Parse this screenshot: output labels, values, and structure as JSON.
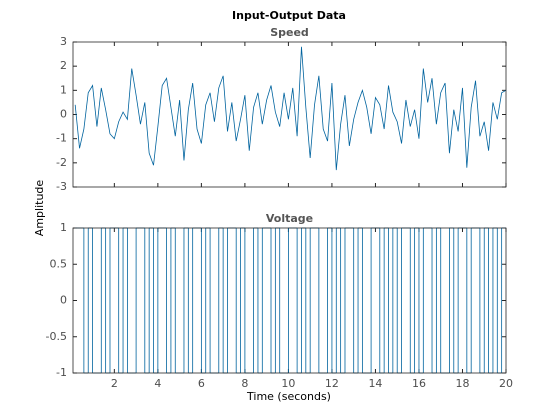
{
  "figure": {
    "title": "Input-Output Data",
    "xlabel": "Time (seconds)",
    "ylabel": "Amplitude"
  },
  "chart_data": [
    {
      "type": "line",
      "title": "Speed",
      "color": "#00639e",
      "xlim": [
        0.1,
        20
      ],
      "ylim": [
        -3,
        3
      ],
      "xticks": [
        2,
        4,
        6,
        8,
        10,
        12,
        14,
        16,
        18,
        20
      ],
      "yticks": [
        -3,
        -2,
        -1,
        0,
        1,
        2,
        3
      ],
      "x": [
        0.2,
        0.4,
        0.6,
        0.8,
        1.0,
        1.2,
        1.4,
        1.6,
        1.8,
        2.0,
        2.2,
        2.4,
        2.6,
        2.8,
        3.0,
        3.2,
        3.4,
        3.6,
        3.8,
        4.0,
        4.2,
        4.4,
        4.6,
        4.8,
        5.0,
        5.2,
        5.4,
        5.6,
        5.8,
        6.0,
        6.2,
        6.4,
        6.6,
        6.8,
        7.0,
        7.2,
        7.4,
        7.6,
        7.8,
        8.0,
        8.2,
        8.4,
        8.6,
        8.8,
        9.0,
        9.2,
        9.4,
        9.6,
        9.8,
        10.0,
        10.2,
        10.4,
        10.6,
        10.8,
        11.0,
        11.2,
        11.4,
        11.6,
        11.8,
        12.0,
        12.2,
        12.4,
        12.6,
        12.8,
        13.0,
        13.2,
        13.4,
        13.6,
        13.8,
        14.0,
        14.2,
        14.4,
        14.6,
        14.8,
        15.0,
        15.2,
        15.4,
        15.6,
        15.8,
        16.0,
        16.2,
        16.4,
        16.6,
        16.8,
        17.0,
        17.2,
        17.4,
        17.6,
        17.8,
        18.0,
        18.2,
        18.4,
        18.6,
        18.8,
        19.0,
        19.2,
        19.4,
        19.6,
        19.8,
        20.0
      ],
      "values": [
        0.4,
        -1.4,
        -0.6,
        0.9,
        1.2,
        -0.5,
        1.1,
        0.2,
        -0.8,
        -1.0,
        -0.3,
        0.1,
        -0.2,
        1.9,
        0.8,
        -0.4,
        0.5,
        -1.6,
        -2.1,
        -0.5,
        1.2,
        1.5,
        0.3,
        -0.9,
        0.6,
        -1.9,
        0.2,
        1.3,
        -0.6,
        -1.2,
        0.4,
        0.9,
        -0.3,
        1.1,
        1.6,
        -0.7,
        0.5,
        -1.1,
        -0.2,
        0.8,
        -1.5,
        0.3,
        0.9,
        -0.4,
        0.6,
        1.2,
        0.1,
        -0.5,
        0.9,
        -0.2,
        1.1,
        -0.9,
        2.8,
        0.3,
        -1.8,
        0.4,
        1.6,
        -0.6,
        -1.1,
        1.3,
        -2.3,
        -0.4,
        0.8,
        -1.3,
        -0.2,
        0.5,
        1.0,
        0.3,
        -0.8,
        0.7,
        0.4,
        -0.6,
        1.2,
        0.1,
        -0.3,
        -1.2,
        0.6,
        -0.5,
        0.2,
        -1.0,
        1.9,
        0.5,
        1.5,
        -0.4,
        0.9,
        1.3,
        -1.6,
        0.2,
        -0.7,
        1.1,
        -2.2,
        0.3,
        1.4,
        -0.9,
        -0.3,
        -1.5,
        0.5,
        -0.2,
        0.9,
        1.0
      ]
    },
    {
      "type": "stairs",
      "title": "Voltage",
      "color": "#00639e",
      "xlim": [
        0.1,
        20
      ],
      "ylim": [
        -1,
        1
      ],
      "xticks": [
        2,
        4,
        6,
        8,
        10,
        12,
        14,
        16,
        18,
        20
      ],
      "yticks": [
        -1,
        -0.5,
        0,
        0.5,
        1
      ],
      "x": [
        0.2,
        0.4,
        0.6,
        0.8,
        1.0,
        1.2,
        1.4,
        1.6,
        1.8,
        2.0,
        2.2,
        2.4,
        2.6,
        2.8,
        3.0,
        3.2,
        3.4,
        3.6,
        3.8,
        4.0,
        4.2,
        4.4,
        4.6,
        4.8,
        5.0,
        5.2,
        5.4,
        5.6,
        5.8,
        6.0,
        6.2,
        6.4,
        6.6,
        6.8,
        7.0,
        7.2,
        7.4,
        7.6,
        7.8,
        8.0,
        8.2,
        8.4,
        8.6,
        8.8,
        9.0,
        9.2,
        9.4,
        9.6,
        9.8,
        10.0,
        10.2,
        10.4,
        10.6,
        10.8,
        11.0,
        11.2,
        11.4,
        11.6,
        11.8,
        12.0,
        12.2,
        12.4,
        12.6,
        12.8,
        13.0,
        13.2,
        13.4,
        13.6,
        13.8,
        14.0,
        14.2,
        14.4,
        14.6,
        14.8,
        15.0,
        15.2,
        15.4,
        15.6,
        15.8,
        16.0,
        16.2,
        16.4,
        16.6,
        16.8,
        17.0,
        17.2,
        17.4,
        17.6,
        17.8,
        18.0,
        18.2,
        18.4,
        18.6,
        18.8,
        19.0,
        19.2,
        19.4,
        19.6,
        19.8,
        20.0
      ],
      "values": [
        1,
        1,
        -1,
        1,
        -1,
        -1,
        1,
        -1,
        1,
        1,
        -1,
        1,
        -1,
        -1,
        1,
        1,
        -1,
        1,
        -1,
        1,
        1,
        -1,
        1,
        -1,
        -1,
        1,
        -1,
        1,
        1,
        -1,
        1,
        -1,
        -1,
        1,
        -1,
        1,
        1,
        -1,
        1,
        -1,
        -1,
        1,
        -1,
        1,
        1,
        -1,
        1,
        -1,
        -1,
        1,
        1,
        -1,
        1,
        -1,
        1,
        1,
        -1,
        -1,
        1,
        -1,
        1,
        -1,
        1,
        1,
        -1,
        1,
        -1,
        -1,
        1,
        1,
        -1,
        1,
        -1,
        1,
        -1,
        1,
        1,
        -1,
        1,
        -1,
        1,
        1,
        -1,
        1,
        -1,
        -1,
        1,
        -1,
        1,
        1,
        -1,
        1,
        1,
        -1,
        1,
        -1,
        1,
        -1,
        1,
        1
      ]
    }
  ]
}
